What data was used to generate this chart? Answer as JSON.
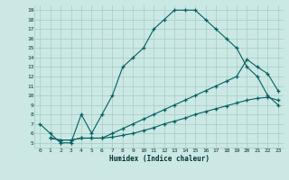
{
  "xlabel": "Humidex (Indice chaleur)",
  "xlim": [
    -0.5,
    23.5
  ],
  "ylim": [
    4.5,
    19.5
  ],
  "xticks": [
    0,
    1,
    2,
    3,
    4,
    5,
    6,
    7,
    8,
    9,
    10,
    11,
    12,
    13,
    14,
    15,
    16,
    17,
    18,
    19,
    20,
    21,
    22,
    23
  ],
  "yticks": [
    5,
    6,
    7,
    8,
    9,
    10,
    11,
    12,
    13,
    14,
    15,
    16,
    17,
    18,
    19
  ],
  "bg_color": "#cce8e4",
  "line_color": "#006060",
  "grid_color": "#aacfcc",
  "line1_x": [
    0,
    1,
    2,
    3,
    4,
    5,
    6,
    7,
    8,
    9,
    10,
    11,
    12,
    13,
    14,
    15,
    16,
    17,
    18,
    19,
    20,
    21,
    22,
    23
  ],
  "line1_y": [
    7,
    6,
    5,
    5,
    8,
    6,
    8,
    10,
    13,
    14,
    15,
    17,
    18,
    19,
    19,
    19,
    18,
    17,
    16,
    15,
    13,
    12,
    10,
    9
  ],
  "line2_x": [
    1,
    2,
    3,
    4,
    5,
    6,
    7,
    8,
    9,
    10,
    11,
    12,
    13,
    14,
    15,
    16,
    17,
    18,
    19,
    20,
    21,
    22,
    23
  ],
  "line2_y": [
    5.5,
    5.3,
    5.3,
    5.5,
    5.5,
    5.5,
    6.0,
    6.5,
    7.0,
    7.5,
    8.0,
    8.5,
    9.0,
    9.5,
    10.0,
    10.5,
    11.0,
    11.5,
    12.0,
    13.8,
    13.0,
    12.3,
    10.5
  ],
  "line3_x": [
    1,
    2,
    3,
    4,
    5,
    6,
    7,
    8,
    9,
    10,
    11,
    12,
    13,
    14,
    15,
    16,
    17,
    18,
    19,
    20,
    21,
    22,
    23
  ],
  "line3_y": [
    5.5,
    5.3,
    5.3,
    5.5,
    5.5,
    5.5,
    5.6,
    5.8,
    6.0,
    6.3,
    6.6,
    7.0,
    7.3,
    7.6,
    8.0,
    8.3,
    8.6,
    8.9,
    9.2,
    9.5,
    9.7,
    9.8,
    9.5
  ]
}
